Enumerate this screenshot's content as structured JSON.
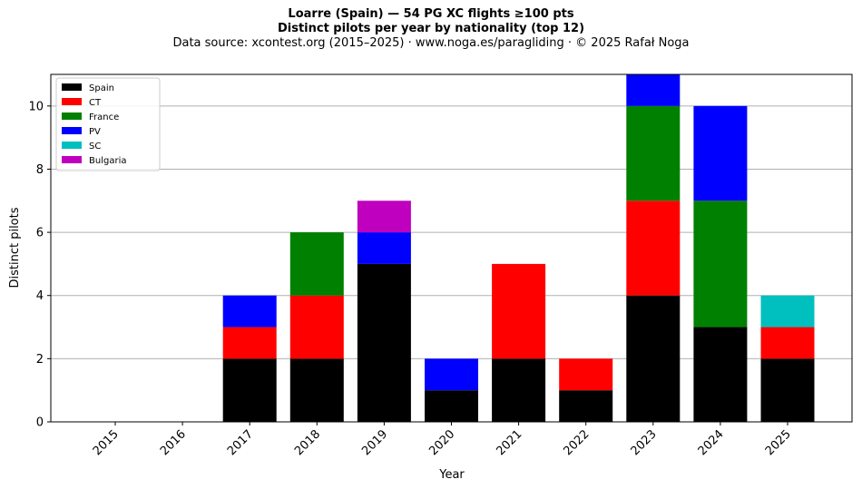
{
  "chart_data": {
    "type": "bar",
    "stacked": true,
    "title": "Loarre (Spain)  —  54 PG XC flights ≥100 pts",
    "subtitle": "Distinct pilots per year by nationality (top 12)",
    "source_line": "Data source: xcontest.org (2015–2025)  ·  www.noga.es/paragliding  ·  © 2025 Rafał Noga",
    "xlabel": "Year",
    "ylabel": "Distinct pilots",
    "ylim": [
      0,
      11
    ],
    "yticks": [
      0,
      2,
      4,
      6,
      8,
      10
    ],
    "grid": "horizontal",
    "legend_position": "top-left",
    "categories": [
      "2015",
      "2016",
      "2017",
      "2018",
      "2019",
      "2020",
      "2021",
      "2022",
      "2023",
      "2024",
      "2025"
    ],
    "series": [
      {
        "name": "Spain",
        "color": "#000000",
        "values": [
          0,
          0,
          2,
          2,
          5,
          1,
          2,
          1,
          4,
          3,
          2
        ]
      },
      {
        "name": "CT",
        "color": "#ff0000",
        "values": [
          0,
          0,
          1,
          2,
          0,
          0,
          3,
          1,
          3,
          0,
          1
        ]
      },
      {
        "name": "France",
        "color": "#008000",
        "values": [
          0,
          0,
          0,
          2,
          0,
          0,
          0,
          0,
          3,
          4,
          0
        ]
      },
      {
        "name": "PV",
        "color": "#0000ff",
        "values": [
          0,
          0,
          1,
          0,
          1,
          1,
          0,
          0,
          1,
          3,
          0
        ]
      },
      {
        "name": "SC",
        "color": "#00bfbf",
        "values": [
          0,
          0,
          0,
          0,
          0,
          0,
          0,
          0,
          0,
          0,
          1
        ]
      },
      {
        "name": "Bulgaria",
        "color": "#bf00bf",
        "values": [
          0,
          0,
          0,
          0,
          1,
          0,
          0,
          0,
          0,
          0,
          0
        ]
      }
    ]
  }
}
